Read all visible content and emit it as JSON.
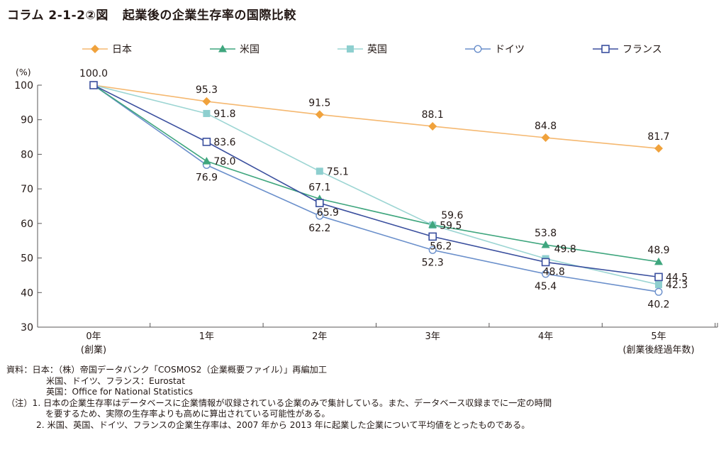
{
  "title": {
    "figure_no": "コラム 2-1-2②図",
    "text": "起業後の企業生存率の国際比較"
  },
  "chart_data": {
    "type": "line",
    "title": "起業後の企業生存率の国際比較",
    "ylabel": "(%)",
    "xlabel": "(創業後経過年数)",
    "ylim": [
      30,
      100
    ],
    "yticks": [
      30,
      40,
      50,
      60,
      70,
      80,
      90,
      100
    ],
    "categories": [
      "0年",
      "1年",
      "2年",
      "3年",
      "4年",
      "5年"
    ],
    "category_sublabels": [
      "(創業)",
      "",
      "",
      "",
      "",
      "(創業後経過年数)"
    ],
    "grid": false,
    "legend_position": "top",
    "series": [
      {
        "name": "日本",
        "color": "#F0A23C",
        "line_color": "#F5B870",
        "marker": "diamond-filled",
        "values": [
          100.0,
          95.3,
          91.5,
          88.1,
          84.8,
          81.7
        ]
      },
      {
        "name": "米国",
        "color": "#3FA67E",
        "line_color": "#3FA67E",
        "marker": "triangle-filled",
        "values": [
          100.0,
          78.0,
          67.1,
          59.6,
          53.8,
          48.9
        ]
      },
      {
        "name": "英国",
        "color": "#8ECFCF",
        "line_color": "#9CD5D3",
        "marker": "square-filled",
        "values": [
          100.0,
          91.8,
          75.1,
          59.5,
          49.8,
          42.3
        ]
      },
      {
        "name": "ドイツ",
        "color": "#6A8FCB",
        "line_color": "#6A8FCB",
        "marker": "circle-open",
        "values": [
          100.0,
          76.9,
          62.2,
          52.3,
          45.4,
          40.2
        ]
      },
      {
        "name": "フランス",
        "color": "#3A4F9E",
        "line_color": "#3A4F9E",
        "marker": "square-open",
        "values": [
          100.0,
          83.6,
          65.9,
          56.2,
          48.8,
          44.5
        ]
      }
    ],
    "data_labels": [
      {
        "text": "100.0",
        "series": "フランス",
        "index": 0,
        "pos": "above"
      },
      {
        "text": "95.3",
        "series": "日本",
        "index": 1,
        "pos": "above"
      },
      {
        "text": "91.5",
        "series": "日本",
        "index": 2,
        "pos": "above"
      },
      {
        "text": "88.1",
        "series": "日本",
        "index": 3,
        "pos": "above"
      },
      {
        "text": "84.8",
        "series": "日本",
        "index": 4,
        "pos": "above"
      },
      {
        "text": "81.7",
        "series": "日本",
        "index": 5,
        "pos": "above"
      },
      {
        "text": "78.0",
        "series": "米国",
        "index": 1,
        "pos": "right"
      },
      {
        "text": "67.1",
        "series": "米国",
        "index": 2,
        "pos": "above"
      },
      {
        "text": "59.6",
        "series": "米国",
        "index": 3,
        "pos": "right-up"
      },
      {
        "text": "53.8",
        "series": "米国",
        "index": 4,
        "pos": "above"
      },
      {
        "text": "48.9",
        "series": "米国",
        "index": 5,
        "pos": "above"
      },
      {
        "text": "91.8",
        "series": "英国",
        "index": 1,
        "pos": "right"
      },
      {
        "text": "75.1",
        "series": "英国",
        "index": 2,
        "pos": "right"
      },
      {
        "text": "59.5",
        "series": "英国",
        "index": 3,
        "pos": "right"
      },
      {
        "text": "49.8",
        "series": "英国",
        "index": 4,
        "pos": "right-up"
      },
      {
        "text": "42.3",
        "series": "英国",
        "index": 5,
        "pos": "right"
      },
      {
        "text": "76.9",
        "series": "ドイツ",
        "index": 1,
        "pos": "below"
      },
      {
        "text": "62.2",
        "series": "ドイツ",
        "index": 2,
        "pos": "below"
      },
      {
        "text": "52.3",
        "series": "ドイツ",
        "index": 3,
        "pos": "below"
      },
      {
        "text": "45.4",
        "series": "ドイツ",
        "index": 4,
        "pos": "below"
      },
      {
        "text": "40.2",
        "series": "ドイツ",
        "index": 5,
        "pos": "below"
      },
      {
        "text": "83.6",
        "series": "フランス",
        "index": 1,
        "pos": "right"
      },
      {
        "text": "65.9",
        "series": "フランス",
        "index": 2,
        "pos": "below-right"
      },
      {
        "text": "56.2",
        "series": "フランス",
        "index": 3,
        "pos": "below-right"
      },
      {
        "text": "48.8",
        "series": "フランス",
        "index": 4,
        "pos": "below-right"
      },
      {
        "text": "44.5",
        "series": "フランス",
        "index": 5,
        "pos": "right"
      }
    ]
  },
  "notes": {
    "source_label": "資料：日本：（株）帝国データバンク「COSMOS2（企業概要ファイル）」再編加工",
    "source_line2": "米国、ドイツ、フランス：Eurostat",
    "source_line3": "英国：Office for National Statistics",
    "note1_line1": "（注）1. 日本の企業生存率はデータベースに企業情報が収録されている企業のみで集計している。また、データベース収録までに一定の時間",
    "note1_line2": "を要するため、実際の生存率よりも高めに算出されている可能性がある。",
    "note2": "2. 米国、英国、ドイツ、フランスの企業生存率は、2007 年から 2013 年に起業した企業について平均値をとったものである。"
  }
}
